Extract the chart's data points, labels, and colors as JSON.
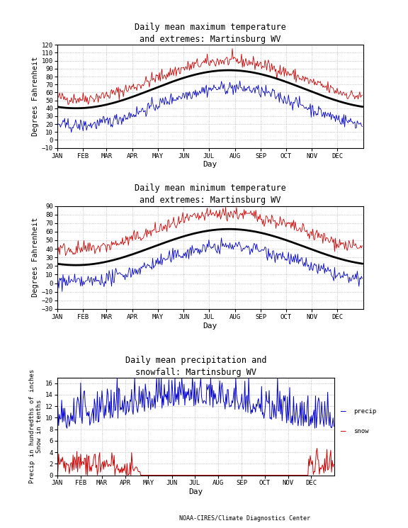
{
  "title1": "Daily mean maximum temperature\nand extremes: Martinsburg WV",
  "title2": "Daily mean minimum temperature\nand extremes: Martinsburg WV",
  "title3": "Daily mean precipitation and\nsnowfall: Martinsburg WV",
  "ylabel1": "Degrees Fahrenheit",
  "ylabel2": "Degrees Fahrenheit",
  "ylabel3_left": "Precip in hundredths of inches\nSnow in tenths",
  "xlabel": "Day",
  "footer": "NOAA-CIRES/Climate Diagnostics Center",
  "months": [
    "JAN",
    "FEB",
    "MAR",
    "APR",
    "MAY",
    "JUN",
    "JUL",
    "AUG",
    "SEP",
    "OCT",
    "NOV",
    "DEC"
  ],
  "background": "#ffffff",
  "grid_color": "#aaaaaa",
  "precip_color": "#0000cc",
  "snow_color": "#cc0000",
  "red_line_color": "#cc0000",
  "blue_line_color": "#0000cc",
  "black_line_color": "#000000",
  "panel1_ylim": [
    -10,
    120
  ],
  "panel1_yticks": [
    -10,
    0,
    10,
    20,
    30,
    40,
    50,
    60,
    70,
    80,
    90,
    100,
    110,
    120
  ],
  "panel2_ylim": [
    -30,
    90
  ],
  "panel2_yticks": [
    -30,
    -20,
    -10,
    0,
    10,
    20,
    30,
    40,
    50,
    60,
    70,
    80,
    90
  ],
  "panel3_ylim": [
    0,
    17
  ],
  "panel3_yticks": [
    0,
    2,
    4,
    6,
    8,
    10,
    12,
    14,
    16
  ]
}
